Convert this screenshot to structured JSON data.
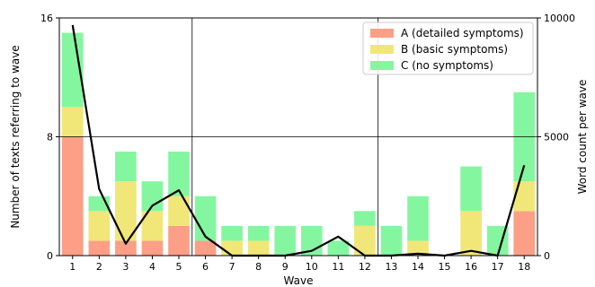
{
  "chart_data": {
    "type": "bar",
    "stacked": true,
    "categories": [
      "1",
      "2",
      "3",
      "4",
      "5",
      "6",
      "7",
      "8",
      "9",
      "10",
      "11",
      "12",
      "13",
      "14",
      "15",
      "16",
      "17",
      "18"
    ],
    "series": [
      {
        "name": "A (detailed symptoms)",
        "color": "#fc9f86",
        "values": [
          8,
          1,
          1,
          1,
          2,
          1,
          0,
          0,
          0,
          0,
          0,
          0,
          0,
          0,
          0,
          0,
          0,
          3
        ]
      },
      {
        "name": "B (basic symptoms)",
        "color": "#f0e778",
        "values": [
          2,
          2,
          4,
          2,
          2,
          0,
          1,
          1,
          0,
          0,
          0,
          2,
          0,
          1,
          0,
          3,
          0,
          2
        ]
      },
      {
        "name": "C (no symptoms)",
        "color": "#85f6a0",
        "values": [
          5,
          1,
          2,
          2,
          3,
          3,
          1,
          1,
          2,
          2,
          1,
          1,
          2,
          3,
          0,
          3,
          2,
          6
        ]
      }
    ],
    "line": {
      "values": [
        9700,
        2800,
        500,
        2100,
        2750,
        800,
        0,
        0,
        0,
        200,
        800,
        0,
        0,
        80,
        0,
        200,
        0,
        3800
      ],
      "color": "#000000",
      "axis": "right"
    },
    "xlabel": "Wave",
    "ylabel": "Number of texts referring to wave",
    "ylabel_right": "Word count per wave",
    "ylim": [
      0,
      16
    ],
    "ylim_right": [
      0,
      10000
    ],
    "yticks": [
      0,
      8,
      16
    ],
    "yticks_right": [
      0,
      5000,
      10000
    ],
    "vlines_after_category": [
      "5",
      "12"
    ],
    "hline_at": 8,
    "legend_position": "top-right"
  }
}
